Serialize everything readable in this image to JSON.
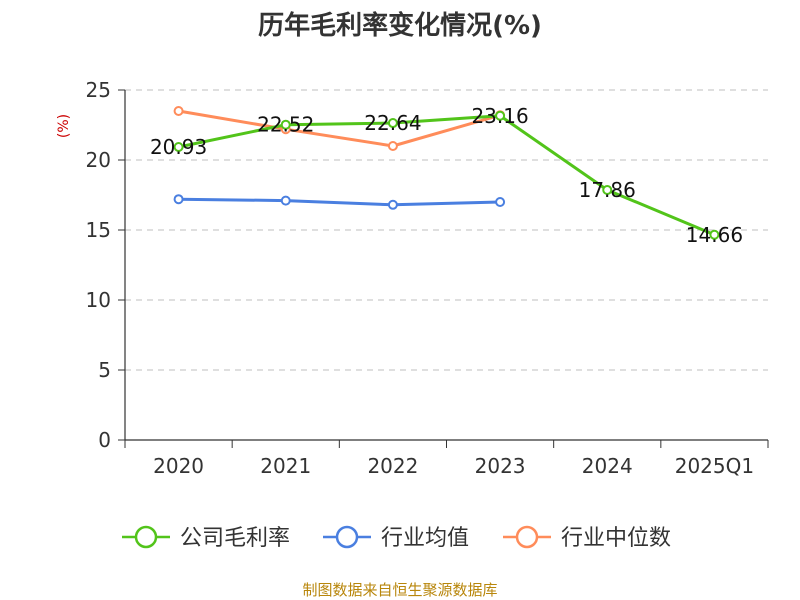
{
  "source": "制图数据来自恒生聚源数据库",
  "colors": {
    "company": "#52c41a",
    "industry_avg": "#4a7fe0",
    "industry_median": "#ff8c5a",
    "unit": "#cc0000",
    "source": "#b8860b",
    "grid": "#cccccc",
    "axis": "#333333"
  },
  "chart_data": {
    "type": "line",
    "title": "历年毛利率变化情况(%)",
    "ylabel": "(%)",
    "xlabel": "",
    "categories": [
      "2020",
      "2021",
      "2022",
      "2023",
      "2024",
      "2025Q1"
    ],
    "ylim": [
      0,
      25
    ],
    "yticks": [
      "0",
      "5",
      "10",
      "15",
      "20",
      "25"
    ],
    "grid": true,
    "legend_position": "bottom",
    "series": [
      {
        "name": "公司毛利率",
        "values": [
          20.93,
          22.52,
          22.64,
          23.16,
          17.86,
          14.66
        ],
        "labels": [
          "20.93",
          "22.52",
          "22.64",
          "23.16",
          "17.86",
          "14.66"
        ]
      },
      {
        "name": "行业均值",
        "values": [
          17.2,
          17.1,
          16.8,
          17.0,
          null,
          null
        ]
      },
      {
        "name": "行业中位数",
        "values": [
          23.5,
          22.2,
          21.0,
          23.2,
          null,
          null
        ]
      }
    ]
  }
}
